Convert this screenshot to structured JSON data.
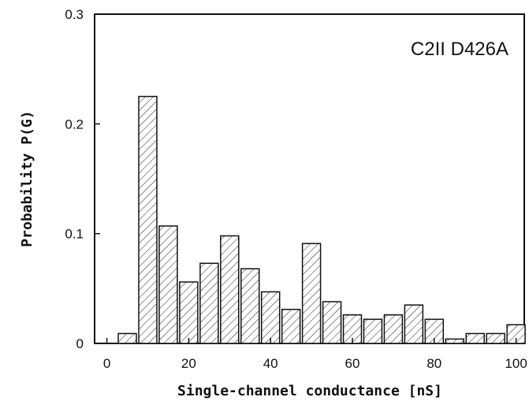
{
  "chart_data": {
    "type": "bar",
    "title": "",
    "annotation": "C2II D426A",
    "xlabel": "Single-channel conductance [nS]",
    "ylabel": "Probability P(G)",
    "xlim": [
      -3,
      102
    ],
    "ylim": [
      0,
      0.3
    ],
    "x_ticks": [
      0,
      20,
      40,
      60,
      80,
      100
    ],
    "x_tick_labels": [
      "0",
      "20",
      "40",
      "60",
      "80",
      "100"
    ],
    "y_ticks": [
      0,
      0.1,
      0.2,
      0.3
    ],
    "y_tick_labels": [
      "0",
      "0.1",
      "0.2",
      "0.3"
    ],
    "bin_width": 5,
    "bar_fill": "hatched",
    "grid": false,
    "x": [
      5,
      10,
      15,
      20,
      25,
      30,
      35,
      40,
      45,
      50,
      55,
      60,
      65,
      70,
      75,
      80,
      85,
      90,
      95,
      100
    ],
    "values": [
      0.009,
      0.225,
      0.107,
      0.056,
      0.073,
      0.098,
      0.068,
      0.047,
      0.031,
      0.091,
      0.038,
      0.026,
      0.022,
      0.026,
      0.035,
      0.022,
      0.004,
      0.009,
      0.009,
      0.017
    ]
  }
}
